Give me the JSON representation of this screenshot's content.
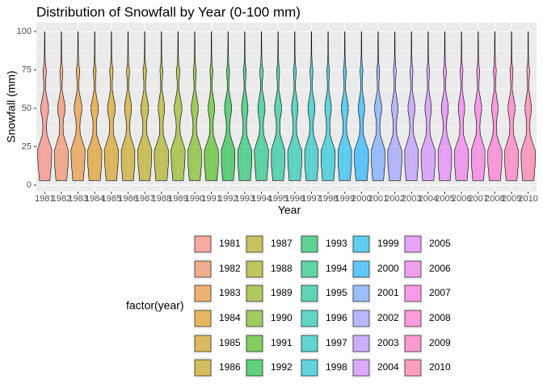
{
  "chart_data": {
    "type": "violin",
    "title": "Distribution of Snowfall by Year (0-100 mm)",
    "x_label": "Year",
    "y_label": "Snowfall (mm)",
    "legend_title": "factor(year)",
    "categories": [
      "1981",
      "1982",
      "1983",
      "1984",
      "1985",
      "1986",
      "1987",
      "1988",
      "1989",
      "1990",
      "1991",
      "1992",
      "1993",
      "1994",
      "1995",
      "1996",
      "1997",
      "1998",
      "1999",
      "2000",
      "2001",
      "2002",
      "2003",
      "2004",
      "2005",
      "2006",
      "2007",
      "2008",
      "2009",
      "2010"
    ],
    "ylim": [
      -4.2,
      105.8
    ],
    "yticks": [
      0,
      25,
      50,
      75,
      100
    ],
    "grid": true,
    "alpha": 0.6,
    "y_grid": [
      3,
      8,
      13,
      18,
      23,
      28,
      33,
      38,
      43,
      48,
      52,
      57,
      62,
      67,
      72,
      75,
      78,
      85,
      92,
      100
    ],
    "series": [
      {
        "name": "1981",
        "color": "#F8766D",
        "density": [
          0.7,
          0.78,
          0.88,
          0.92,
          0.95,
          0.62,
          0.3,
          0.24,
          0.3,
          0.52,
          0.5,
          0.3,
          0.12,
          0.12,
          0.2,
          0.24,
          0.12,
          0.04,
          0.03,
          0.02
        ]
      },
      {
        "name": "1982",
        "color": "#F07E4D",
        "density": [
          0.72,
          0.8,
          0.9,
          0.9,
          0.9,
          0.58,
          0.28,
          0.22,
          0.28,
          0.5,
          0.48,
          0.28,
          0.1,
          0.11,
          0.18,
          0.2,
          0.1,
          0.04,
          0.03,
          0.02
        ]
      },
      {
        "name": "1983",
        "color": "#E7851E",
        "density": [
          0.7,
          0.78,
          0.88,
          0.92,
          0.95,
          0.62,
          0.3,
          0.24,
          0.3,
          0.52,
          0.5,
          0.3,
          0.12,
          0.12,
          0.2,
          0.24,
          0.12,
          0.04,
          0.03,
          0.02
        ]
      },
      {
        "name": "1984",
        "color": "#DC8D00",
        "density": [
          0.75,
          0.82,
          0.92,
          0.95,
          0.92,
          0.55,
          0.26,
          0.22,
          0.26,
          0.5,
          0.48,
          0.26,
          0.1,
          0.1,
          0.16,
          0.2,
          0.1,
          0.03,
          0.03,
          0.02
        ]
      },
      {
        "name": "1985",
        "color": "#CF9400",
        "density": [
          0.7,
          0.78,
          0.88,
          0.92,
          0.95,
          0.62,
          0.3,
          0.24,
          0.3,
          0.52,
          0.5,
          0.3,
          0.12,
          0.12,
          0.2,
          0.24,
          0.12,
          0.04,
          0.03,
          0.02
        ]
      },
      {
        "name": "1986",
        "color": "#C09B00",
        "density": [
          0.72,
          0.8,
          0.9,
          0.9,
          0.9,
          0.58,
          0.28,
          0.22,
          0.28,
          0.46,
          0.46,
          0.28,
          0.1,
          0.11,
          0.18,
          0.2,
          0.1,
          0.04,
          0.03,
          0.02
        ]
      },
      {
        "name": "1987",
        "color": "#AFA100",
        "density": [
          0.7,
          0.78,
          0.88,
          0.92,
          0.95,
          0.62,
          0.3,
          0.24,
          0.3,
          0.52,
          0.5,
          0.3,
          0.12,
          0.12,
          0.2,
          0.24,
          0.12,
          0.04,
          0.03,
          0.02
        ]
      },
      {
        "name": "1988",
        "color": "#9CA700",
        "density": [
          0.75,
          0.82,
          0.92,
          0.95,
          0.92,
          0.55,
          0.26,
          0.22,
          0.26,
          0.42,
          0.42,
          0.26,
          0.1,
          0.1,
          0.16,
          0.2,
          0.1,
          0.03,
          0.03,
          0.02
        ]
      },
      {
        "name": "1989",
        "color": "#85AD00",
        "density": [
          0.7,
          0.78,
          0.88,
          0.92,
          0.95,
          0.62,
          0.3,
          0.24,
          0.3,
          0.52,
          0.5,
          0.3,
          0.12,
          0.12,
          0.2,
          0.24,
          0.12,
          0.04,
          0.03,
          0.02
        ]
      },
      {
        "name": "1990",
        "color": "#68B100",
        "density": [
          0.72,
          0.8,
          0.9,
          0.9,
          0.9,
          0.58,
          0.28,
          0.22,
          0.28,
          0.46,
          0.46,
          0.28,
          0.1,
          0.11,
          0.18,
          0.2,
          0.1,
          0.04,
          0.03,
          0.02
        ]
      },
      {
        "name": "1991",
        "color": "#3BB600",
        "density": [
          0.75,
          0.82,
          0.92,
          0.95,
          0.92,
          0.55,
          0.26,
          0.22,
          0.26,
          0.42,
          0.42,
          0.26,
          0.1,
          0.1,
          0.16,
          0.2,
          0.1,
          0.03,
          0.03,
          0.02
        ]
      },
      {
        "name": "1992",
        "color": "#00B92F",
        "density": [
          0.72,
          0.8,
          0.9,
          0.9,
          0.9,
          0.58,
          0.28,
          0.22,
          0.28,
          0.46,
          0.46,
          0.28,
          0.1,
          0.11,
          0.18,
          0.2,
          0.1,
          0.04,
          0.03,
          0.02
        ]
      },
      {
        "name": "1993",
        "color": "#00BC56",
        "density": [
          0.75,
          0.82,
          0.92,
          0.95,
          0.92,
          0.55,
          0.26,
          0.22,
          0.26,
          0.42,
          0.42,
          0.26,
          0.1,
          0.1,
          0.16,
          0.2,
          0.1,
          0.03,
          0.03,
          0.02
        ]
      },
      {
        "name": "1994",
        "color": "#00BF73",
        "density": [
          0.7,
          0.78,
          0.88,
          0.92,
          0.95,
          0.62,
          0.3,
          0.24,
          0.3,
          0.48,
          0.46,
          0.3,
          0.12,
          0.12,
          0.2,
          0.22,
          0.12,
          0.04,
          0.03,
          0.02
        ]
      },
      {
        "name": "1995",
        "color": "#00C08D",
        "density": [
          0.72,
          0.8,
          0.9,
          0.9,
          0.9,
          0.58,
          0.28,
          0.22,
          0.28,
          0.46,
          0.46,
          0.28,
          0.1,
          0.11,
          0.18,
          0.2,
          0.1,
          0.04,
          0.03,
          0.02
        ]
      },
      {
        "name": "1996",
        "color": "#00C1A5",
        "density": [
          0.75,
          0.82,
          0.92,
          0.95,
          0.92,
          0.55,
          0.26,
          0.22,
          0.26,
          0.42,
          0.42,
          0.26,
          0.1,
          0.1,
          0.16,
          0.2,
          0.1,
          0.03,
          0.03,
          0.02
        ]
      },
      {
        "name": "1997",
        "color": "#00C0BA",
        "density": [
          0.72,
          0.8,
          0.9,
          0.9,
          0.9,
          0.58,
          0.28,
          0.22,
          0.28,
          0.46,
          0.46,
          0.28,
          0.1,
          0.11,
          0.18,
          0.2,
          0.1,
          0.04,
          0.03,
          0.02
        ]
      },
      {
        "name": "1998",
        "color": "#00BECE",
        "density": [
          0.75,
          0.82,
          0.92,
          0.95,
          0.92,
          0.55,
          0.26,
          0.22,
          0.26,
          0.42,
          0.42,
          0.26,
          0.1,
          0.1,
          0.16,
          0.2,
          0.1,
          0.03,
          0.03,
          0.02
        ]
      },
      {
        "name": "1999",
        "color": "#00B4EF",
        "density": [
          0.72,
          0.8,
          0.9,
          0.9,
          0.9,
          0.58,
          0.28,
          0.22,
          0.28,
          0.46,
          0.46,
          0.28,
          0.1,
          0.11,
          0.18,
          0.2,
          0.1,
          0.04,
          0.03,
          0.02
        ]
      },
      {
        "name": "2000",
        "color": "#00A8FF",
        "density": [
          0.75,
          0.82,
          0.92,
          0.95,
          0.92,
          0.55,
          0.26,
          0.22,
          0.26,
          0.42,
          0.42,
          0.26,
          0.1,
          0.1,
          0.16,
          0.2,
          0.1,
          0.03,
          0.03,
          0.02
        ]
      },
      {
        "name": "2001",
        "color": "#619CFF",
        "density": [
          0.72,
          0.8,
          0.9,
          0.9,
          0.9,
          0.58,
          0.28,
          0.22,
          0.28,
          0.46,
          0.46,
          0.28,
          0.1,
          0.11,
          0.18,
          0.2,
          0.1,
          0.04,
          0.03,
          0.02
        ]
      },
      {
        "name": "2002",
        "color": "#8F91FF",
        "density": [
          0.75,
          0.82,
          0.92,
          0.95,
          0.92,
          0.55,
          0.26,
          0.22,
          0.26,
          0.42,
          0.42,
          0.26,
          0.1,
          0.1,
          0.16,
          0.2,
          0.1,
          0.03,
          0.03,
          0.02
        ]
      },
      {
        "name": "2003",
        "color": "#B186FF",
        "density": [
          0.72,
          0.8,
          0.9,
          0.9,
          0.9,
          0.58,
          0.28,
          0.22,
          0.28,
          0.46,
          0.46,
          0.28,
          0.1,
          0.11,
          0.18,
          0.2,
          0.1,
          0.04,
          0.03,
          0.02
        ]
      },
      {
        "name": "2004",
        "color": "#CB7BFF",
        "density": [
          0.75,
          0.82,
          0.92,
          0.95,
          0.92,
          0.55,
          0.26,
          0.22,
          0.26,
          0.42,
          0.42,
          0.26,
          0.1,
          0.1,
          0.16,
          0.2,
          0.1,
          0.03,
          0.03,
          0.02
        ]
      },
      {
        "name": "2005",
        "color": "#DF70F8",
        "density": [
          0.72,
          0.8,
          0.9,
          0.9,
          0.9,
          0.58,
          0.28,
          0.22,
          0.28,
          0.46,
          0.46,
          0.28,
          0.1,
          0.11,
          0.18,
          0.2,
          0.1,
          0.04,
          0.03,
          0.02
        ]
      },
      {
        "name": "2006",
        "color": "#EE67EB",
        "density": [
          0.75,
          0.82,
          0.92,
          0.95,
          0.92,
          0.55,
          0.26,
          0.22,
          0.26,
          0.42,
          0.42,
          0.26,
          0.1,
          0.1,
          0.16,
          0.2,
          0.1,
          0.03,
          0.03,
          0.02
        ]
      },
      {
        "name": "2007",
        "color": "#F962DD",
        "density": [
          0.72,
          0.8,
          0.9,
          0.9,
          0.9,
          0.58,
          0.28,
          0.22,
          0.28,
          0.46,
          0.46,
          0.28,
          0.1,
          0.11,
          0.18,
          0.2,
          0.1,
          0.04,
          0.03,
          0.02
        ]
      },
      {
        "name": "2008",
        "color": "#FF61CB",
        "density": [
          0.75,
          0.82,
          0.92,
          0.95,
          0.92,
          0.55,
          0.26,
          0.22,
          0.26,
          0.42,
          0.42,
          0.26,
          0.1,
          0.1,
          0.16,
          0.2,
          0.1,
          0.03,
          0.03,
          0.02
        ]
      },
      {
        "name": "2009",
        "color": "#FF63B6",
        "density": [
          0.72,
          0.8,
          0.9,
          0.9,
          0.9,
          0.58,
          0.28,
          0.22,
          0.28,
          0.46,
          0.46,
          0.28,
          0.1,
          0.11,
          0.18,
          0.2,
          0.1,
          0.04,
          0.03,
          0.02
        ]
      },
      {
        "name": "2010",
        "color": "#FF689F",
        "density": [
          0.75,
          0.82,
          0.92,
          0.95,
          0.92,
          0.55,
          0.26,
          0.22,
          0.26,
          0.42,
          0.42,
          0.26,
          0.1,
          0.1,
          0.16,
          0.2,
          0.1,
          0.03,
          0.03,
          0.02
        ]
      }
    ]
  }
}
